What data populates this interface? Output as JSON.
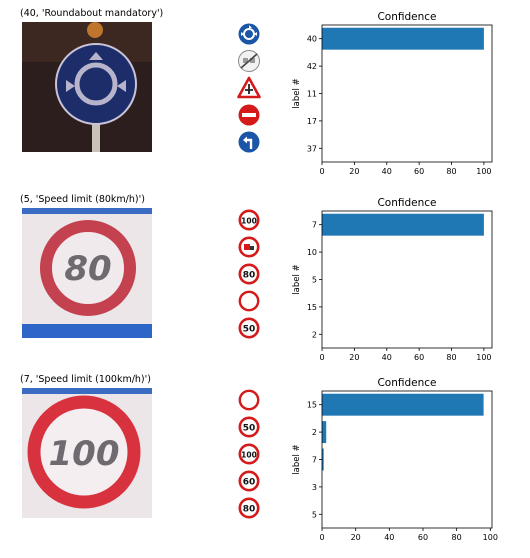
{
  "rows": [
    {
      "title": "(40, 'Roundabout mandatory')",
      "photo_icon": "roundabout-sign-photo",
      "thumbs": [
        "roundabout-icon",
        "end-no-passing-icon",
        "priority-road-warning-icon",
        "no-entry-icon",
        "keep-left-icon"
      ]
    },
    {
      "title": "(5, 'Speed limit (80km/h)')",
      "photo_icon": "speed-limit-80-photo",
      "thumbs": [
        "speed-limit-100-icon",
        "no-trucks-passing-icon",
        "speed-limit-80-icon",
        "no-vehicles-icon",
        "speed-limit-50-icon"
      ]
    },
    {
      "title": "(7, 'Speed limit (100km/h)')",
      "photo_icon": "speed-limit-100-photo",
      "thumbs": [
        "no-vehicles-icon",
        "speed-limit-50-icon",
        "speed-limit-100-icon",
        "speed-limit-60-icon",
        "speed-limit-80-icon"
      ]
    }
  ],
  "thumb_texts": {
    "speed-limit-100-icon": "100",
    "speed-limit-80-icon": "80",
    "speed-limit-50-icon": "50",
    "speed-limit-60-icon": "60"
  },
  "photo_texts": {
    "speed-limit-80-photo": "80",
    "speed-limit-100-photo": "100"
  },
  "chart_data": [
    {
      "type": "bar",
      "orientation": "horizontal",
      "title": "Confidence",
      "ylabel": "label #",
      "categories": [
        "40",
        "42",
        "11",
        "17",
        "37"
      ],
      "values": [
        100,
        0,
        0,
        0,
        0
      ],
      "xlim": [
        0,
        105
      ],
      "xticks": [
        0,
        20,
        40,
        60,
        80,
        100
      ],
      "color": "#1f77b4"
    },
    {
      "type": "bar",
      "orientation": "horizontal",
      "title": "Confidence",
      "ylabel": "label #",
      "categories": [
        "7",
        "10",
        "5",
        "15",
        "2"
      ],
      "values": [
        100,
        0,
        0,
        0,
        0
      ],
      "xlim": [
        0,
        105
      ],
      "xticks": [
        0,
        20,
        40,
        60,
        80,
        100
      ],
      "color": "#1f77b4"
    },
    {
      "type": "bar",
      "orientation": "horizontal",
      "title": "Confidence",
      "ylabel": "label #",
      "categories": [
        "15",
        "2",
        "7",
        "3",
        "5"
      ],
      "values": [
        96,
        2.5,
        1.0,
        0,
        0
      ],
      "xlim": [
        0,
        101
      ],
      "xticks": [
        0,
        20,
        40,
        60,
        80,
        100
      ],
      "color": "#1f77b4"
    }
  ]
}
